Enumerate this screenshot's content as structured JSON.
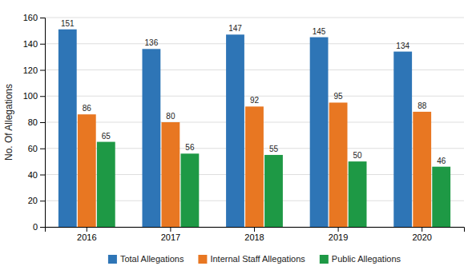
{
  "chart_data": {
    "type": "bar",
    "categories": [
      "2016",
      "2017",
      "2018",
      "2019",
      "2020"
    ],
    "series": [
      {
        "name": "Total Allegations",
        "color": "#2E75B6",
        "values": [
          151,
          136,
          147,
          145,
          134
        ]
      },
      {
        "name": "Internal Staff Allegations",
        "color": "#E87722",
        "values": [
          86,
          80,
          92,
          95,
          88
        ]
      },
      {
        "name": "Public Allegations",
        "color": "#1E9945",
        "values": [
          65,
          56,
          55,
          50,
          46
        ]
      }
    ],
    "ylabel": "No. Of Allegations",
    "ylim": [
      0,
      160
    ],
    "yticks": [
      0,
      20,
      40,
      60,
      80,
      100,
      120,
      140,
      160
    ],
    "grid": true,
    "data_labels": true,
    "legend": "bottom"
  }
}
